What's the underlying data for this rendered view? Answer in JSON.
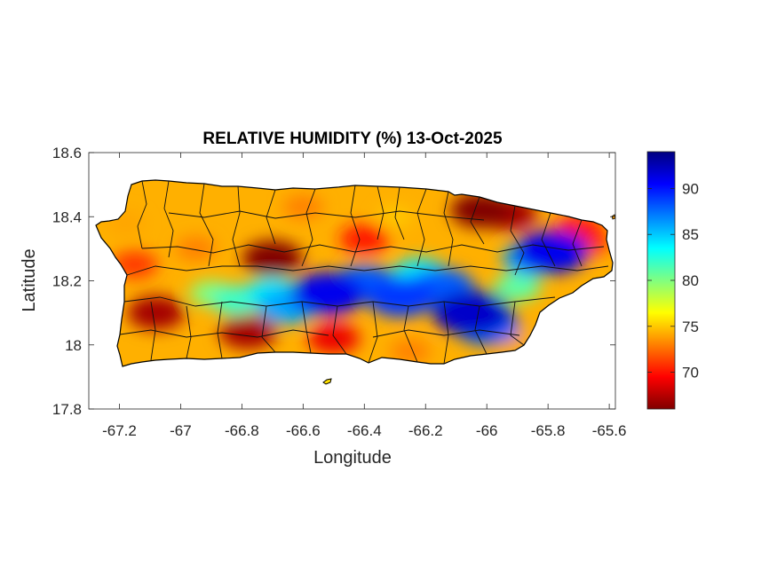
{
  "chart_data": {
    "type": "heatmap",
    "title": "RELATIVE HUMIDITY (%) 13-Oct-2025",
    "xlabel": "Longitude",
    "ylabel": "Latitude",
    "xlim": [
      -67.3,
      -65.58
    ],
    "ylim": [
      17.8,
      18.6
    ],
    "xticks": [
      -67.2,
      -67,
      -66.8,
      -66.6,
      -66.4,
      -66.2,
      -66,
      -65.8,
      -65.6
    ],
    "xtick_labels": [
      "-67.2",
      "-67",
      "-66.8",
      "-66.6",
      "-66.4",
      "-66.2",
      "-66",
      "-65.8",
      "-65.6"
    ],
    "yticks": [
      17.8,
      18,
      18.2,
      18.4,
      18.6
    ],
    "ytick_labels": [
      "17.8",
      "18",
      "18.2",
      "18.4",
      "18.6"
    ],
    "colorbar": {
      "range": [
        66,
        94
      ],
      "ticks": [
        70,
        75,
        80,
        85,
        90
      ],
      "tick_labels": [
        "70",
        "75",
        "80",
        "85",
        "90"
      ],
      "colormap": "jet",
      "colors": [
        "#800000",
        "#ff0000",
        "#ff8000",
        "#ffff00",
        "#80ff80",
        "#00ffff",
        "#0080ff",
        "#0000ff",
        "#000080"
      ]
    },
    "grid": false,
    "humidity_features": [
      {
        "lon": -66.52,
        "lat": 18.16,
        "value": 91
      },
      {
        "lon": -66.4,
        "lat": 18.19,
        "value": 88
      },
      {
        "lon": -66.28,
        "lat": 18.15,
        "value": 89
      },
      {
        "lon": -66.15,
        "lat": 18.18,
        "value": 88
      },
      {
        "lon": -66.05,
        "lat": 18.1,
        "value": 92
      },
      {
        "lon": -66.0,
        "lat": 18.06,
        "value": 88
      },
      {
        "lon": -66.7,
        "lat": 18.16,
        "value": 84
      },
      {
        "lon": -66.82,
        "lat": 18.14,
        "value": 82
      },
      {
        "lon": -66.65,
        "lat": 18.12,
        "value": 86
      },
      {
        "lon": -65.79,
        "lat": 18.29,
        "value": 91
      },
      {
        "lon": -65.85,
        "lat": 18.27,
        "value": 86
      },
      {
        "lon": -66.22,
        "lat": 18.22,
        "value": 84
      },
      {
        "lon": -66.9,
        "lat": 18.16,
        "value": 80
      },
      {
        "lon": -65.9,
        "lat": 18.18,
        "value": 81
      },
      {
        "lon": -66.7,
        "lat": 18.27,
        "value": 66
      },
      {
        "lon": -66.02,
        "lat": 18.42,
        "value": 66
      },
      {
        "lon": -65.93,
        "lat": 18.41,
        "value": 67
      },
      {
        "lon": -67.08,
        "lat": 18.1,
        "value": 67
      },
      {
        "lon": -66.78,
        "lat": 18.04,
        "value": 67
      },
      {
        "lon": -67.15,
        "lat": 18.25,
        "value": 71
      },
      {
        "lon": -66.5,
        "lat": 18.02,
        "value": 69
      },
      {
        "lon": -66.4,
        "lat": 18.33,
        "value": 70
      },
      {
        "lon": -65.67,
        "lat": 18.32,
        "value": 71
      },
      {
        "lon": -65.7,
        "lat": 18.36,
        "value": 70
      },
      {
        "lon": -66.95,
        "lat": 18.3,
        "value": 73
      },
      {
        "lon": -66.6,
        "lat": 18.43,
        "value": 73
      },
      {
        "lon": -66.3,
        "lat": 18.4,
        "value": 75
      },
      {
        "lon": -66.25,
        "lat": 17.98,
        "value": 73
      },
      {
        "lon": -65.92,
        "lat": 18.02,
        "value": 74
      },
      {
        "lon": -67.18,
        "lat": 18.38,
        "value": 74
      }
    ]
  }
}
